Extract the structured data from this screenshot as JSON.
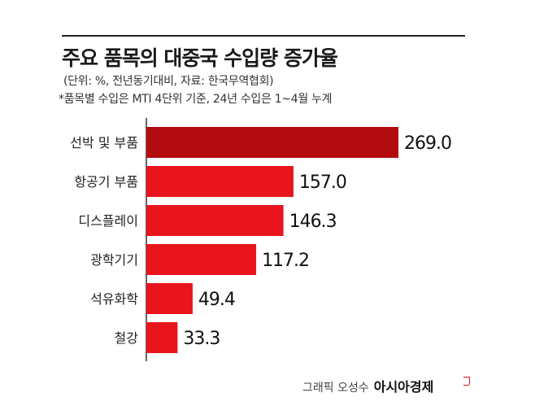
{
  "header": {
    "title": "주요 품목의 대중국 수입량 증가율",
    "subtitle_1": "(단위: %, 전년동기대비, 자료: 한국무역협회)",
    "subtitle_2": "*품목별 수입은 MTI 4단위 기준, 24년 수입은 1~4월 누계"
  },
  "chart_data": {
    "type": "bar",
    "orientation": "horizontal",
    "categories": [
      "선박 및 부품",
      "항공기 부품",
      "디스플레이",
      "광학기기",
      "석유화학",
      "철강"
    ],
    "values": [
      269.0,
      157.0,
      146.3,
      117.2,
      49.4,
      33.3
    ],
    "data_labels": [
      "269.0",
      "157.0",
      "146.3",
      "117.2",
      "49.4",
      "33.3"
    ],
    "xlim": [
      0,
      269.0
    ],
    "grid": false,
    "legend": "none",
    "colors": {
      "highlight": "#b30d12",
      "bar": "#e8151c",
      "axis": "#333333"
    }
  },
  "credit": {
    "author": "그래픽 오성수",
    "brand": "아시아경제"
  }
}
